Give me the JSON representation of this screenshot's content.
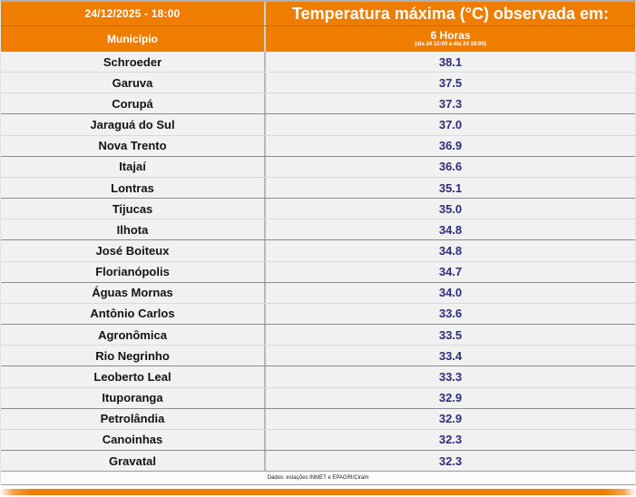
{
  "header": {
    "datetime_label": "24/12/2025 - 18:00",
    "title": "Temperatura máxima (°C) observada em:",
    "municipality_column": "Município",
    "period_column": "6 Horas",
    "period_subtitle": "(dia 24 12:00 a dia 24 18:00)"
  },
  "footer": {
    "source": "Dados: estações INMET e EPAGRI/Ciram"
  },
  "colors": {
    "accent_orange": "#EF7D00",
    "value_navy": "#2E2E7B"
  },
  "chart_data": {
    "type": "table",
    "title": "Temperatura máxima (°C) observada em:",
    "datetime": "24/12/2025 - 18:00",
    "period": "6 Horas (dia 24 12:00 a dia 24 18:00)",
    "columns": [
      "Município",
      "6 Horas"
    ],
    "value_format": "one_decimal_celsius",
    "rows": [
      [
        "Schroeder",
        38.1
      ],
      [
        "Garuva",
        37.5
      ],
      [
        "Corupá",
        37.3
      ],
      [
        "Jaraguá do Sul",
        37.0
      ],
      [
        "Nova Trento",
        36.9
      ],
      [
        "Itajaí",
        36.6
      ],
      [
        "Lontras",
        35.1
      ],
      [
        "Tijucas",
        35.0
      ],
      [
        "Ilhota",
        34.8
      ],
      [
        "José Boiteux",
        34.8
      ],
      [
        "Florianópolis",
        34.7
      ],
      [
        "Águas Mornas",
        34.0
      ],
      [
        "Antônio Carlos",
        33.6
      ],
      [
        "Agronômica",
        33.5
      ],
      [
        "Rio Negrinho",
        33.4
      ],
      [
        "Leoberto Leal",
        33.3
      ],
      [
        "Ituporanga",
        32.9
      ],
      [
        "Petrolândia",
        32.9
      ],
      [
        "Canoinhas",
        32.3
      ],
      [
        "Gravatal",
        32.3
      ]
    ]
  }
}
